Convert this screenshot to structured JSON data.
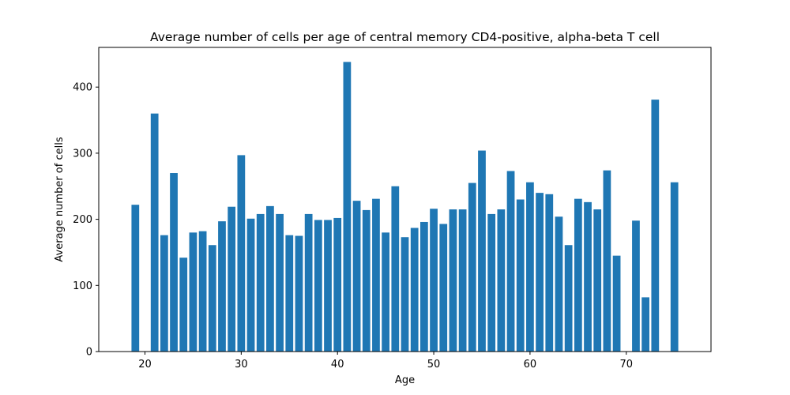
{
  "colors": {
    "bar": "#1f77b4",
    "axis": "#000000",
    "background": "#ffffff"
  },
  "chart_data": {
    "type": "bar",
    "title": "Average number of cells per age of central memory CD4-positive, alpha-beta T cell",
    "xlabel": "Age",
    "ylabel": "Average number of cells",
    "xlim": [
      15.2,
      78.8
    ],
    "ylim": [
      0,
      460
    ],
    "xticks": [
      20,
      30,
      40,
      50,
      60,
      70
    ],
    "yticks": [
      0,
      100,
      200,
      300,
      400
    ],
    "grid": false,
    "x": [
      19,
      21,
      22,
      23,
      24,
      25,
      26,
      27,
      28,
      29,
      30,
      31,
      32,
      33,
      34,
      35,
      36,
      37,
      38,
      39,
      40,
      41,
      42,
      43,
      44,
      45,
      46,
      47,
      48,
      49,
      50,
      51,
      52,
      53,
      54,
      55,
      56,
      57,
      58,
      59,
      60,
      61,
      62,
      63,
      64,
      65,
      66,
      67,
      68,
      69,
      71,
      72,
      73,
      75
    ],
    "values": [
      222,
      360,
      176,
      270,
      142,
      180,
      182,
      161,
      197,
      219,
      297,
      201,
      208,
      220,
      208,
      176,
      175,
      208,
      199,
      199,
      202,
      438,
      228,
      214,
      231,
      180,
      250,
      173,
      187,
      196,
      216,
      193,
      215,
      215,
      255,
      304,
      208,
      215,
      273,
      230,
      256,
      240,
      238,
      204,
      161,
      231,
      226,
      215,
      274,
      145,
      198,
      82,
      381,
      256
    ]
  }
}
